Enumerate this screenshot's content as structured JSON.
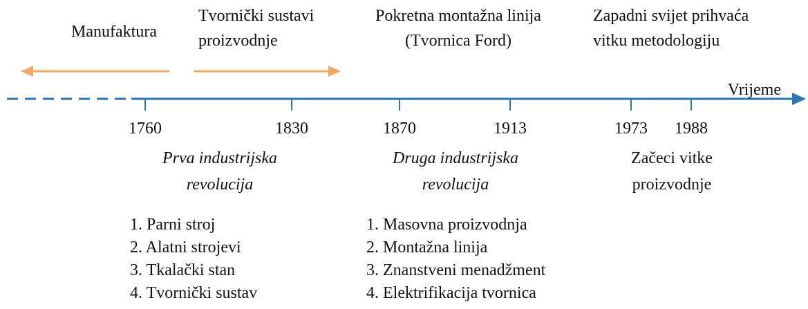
{
  "top_labels": [
    {
      "lines": [
        "Manufaktura"
      ]
    },
    {
      "lines": [
        "Tvornički sustavi",
        "proizvodnje"
      ]
    },
    {
      "lines": [
        "Pokretna montažna linija",
        "(Tvornica Ford)"
      ]
    },
    {
      "lines": [
        "Zapadni svijet prihvaća",
        "vitku metodologiju"
      ]
    }
  ],
  "timeline": {
    "axis_label": "Vrijeme",
    "ticks": [
      "1760",
      "1830",
      "1870",
      "1913",
      "1973",
      "1988"
    ]
  },
  "eras": [
    {
      "lines": [
        "Prva industrijska",
        "revolucija"
      ]
    },
    {
      "lines": [
        "Druga industrijska",
        "revolucija"
      ]
    },
    {
      "lines": [
        "Začeci vitke",
        "proizvodnje"
      ]
    }
  ],
  "lists": [
    {
      "items": [
        "1. Parni stroj",
        "2. Alatni strojevi",
        "3. Tkalački stan",
        "4. Tvornički sustav"
      ]
    },
    {
      "items": [
        "1. Masovna proizvodnja",
        "2. Montažna linija",
        "3. Znanstveni menadžment",
        "4. Elektrifikacija tvornica"
      ]
    }
  ]
}
